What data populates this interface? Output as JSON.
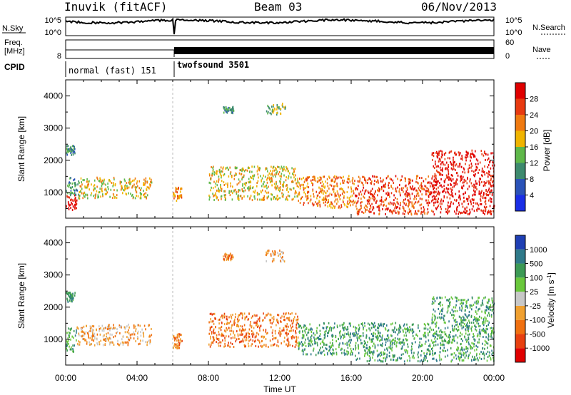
{
  "header": {
    "station": "Inuvik (fitACF)",
    "beam": "Beam 03",
    "date": "06/Nov/2013"
  },
  "top_panels": {
    "nsky_label": "N.Sky",
    "nsky_ticks": [
      "10^5",
      "10^0"
    ],
    "nsearch_label": "N.Search",
    "nsearch_ticks": [
      "10^5",
      "10^0"
    ],
    "freq_label": "Freq.",
    "freq_unit": "[MHz]",
    "freq_tick": "8",
    "nave_label": "Nave",
    "nave_ticks": [
      "60",
      "0"
    ],
    "cpid_label": "CPID",
    "cpid_modes": [
      {
        "name": "normal (fast) 151",
        "start_hour": 0,
        "end_hour": 6.0
      },
      {
        "name": "twofsound 3501",
        "start_hour": 6.0,
        "end_hour": 24.0
      }
    ]
  },
  "chart_data": [
    {
      "type": "heatmap",
      "name": "Power",
      "xlabel": "",
      "ylabel": "Slant Range [km]",
      "xlim": [
        0,
        24
      ],
      "ylim": [
        200,
        4500
      ],
      "y_ticks": [
        1000,
        2000,
        3000,
        4000
      ],
      "colorbar_label": "Power [dB]",
      "colorbar_ticks": [
        "4",
        "8",
        "12",
        "16",
        "20",
        "24",
        "28"
      ],
      "colorbar_colors": [
        "#1a2ee6",
        "#2a52b8",
        "#3d8a6e",
        "#5fb84a",
        "#f0b400",
        "#f07a10",
        "#e83a10",
        "#e00000"
      ],
      "scatter_regions": [
        {
          "t": [
            0.0,
            0.6
          ],
          "r": [
            400,
            900
          ],
          "level": 7
        },
        {
          "t": [
            0.0,
            0.7
          ],
          "r": [
            900,
            1450
          ],
          "level": 2
        },
        {
          "t": [
            0.7,
            4.8
          ],
          "r": [
            800,
            1450
          ],
          "level": 4
        },
        {
          "t": [
            0.0,
            0.5
          ],
          "r": [
            2150,
            2450
          ],
          "level": 2
        },
        {
          "t": [
            6.0,
            6.5
          ],
          "r": [
            700,
            1150
          ],
          "level": 5
        },
        {
          "t": [
            8.0,
            13.0
          ],
          "r": [
            750,
            1800
          ],
          "level": 4
        },
        {
          "t": [
            13.0,
            16.2
          ],
          "r": [
            500,
            1500
          ],
          "level": 5
        },
        {
          "t": [
            16.2,
            20.5
          ],
          "r": [
            300,
            1500
          ],
          "level": 6
        },
        {
          "t": [
            20.5,
            24.0
          ],
          "r": [
            300,
            2300
          ],
          "level": 7
        },
        {
          "t": [
            8.8,
            9.4
          ],
          "r": [
            3450,
            3650
          ],
          "level": 2
        },
        {
          "t": [
            11.2,
            12.3
          ],
          "r": [
            3400,
            3750
          ],
          "level": 3
        }
      ]
    },
    {
      "type": "heatmap",
      "name": "Velocity",
      "xlabel": "Time UT",
      "ylabel": "Slant Range [km]",
      "xlim": [
        0,
        24
      ],
      "ylim": [
        200,
        4500
      ],
      "x_ticks": [
        "00:00",
        "04:00",
        "08:00",
        "12:00",
        "16:00",
        "20:00",
        "00:00"
      ],
      "y_ticks": [
        1000,
        2000,
        3000,
        4000
      ],
      "colorbar_label": "Velocity [m s^-1]",
      "colorbar_ticks": [
        "1000",
        "500",
        "100",
        "25",
        "-25",
        "-100",
        "-500",
        "-1000"
      ],
      "colorbar_colors": [
        "#1f3fb4",
        "#2f7a8a",
        "#3c9a55",
        "#6ac83c",
        "#c8c8c8",
        "#f0a030",
        "#f07010",
        "#e84010",
        "#e00000"
      ],
      "scatter_regions": [
        {
          "t": [
            0.0,
            0.6
          ],
          "r": [
            600,
            1400
          ],
          "level": 6
        },
        {
          "t": [
            0.6,
            4.8
          ],
          "r": [
            800,
            1450
          ],
          "level": 3
        },
        {
          "t": [
            0.0,
            0.5
          ],
          "r": [
            2150,
            2450
          ],
          "level": 6
        },
        {
          "t": [
            6.0,
            6.5
          ],
          "r": [
            700,
            1150
          ],
          "level": 2
        },
        {
          "t": [
            8.0,
            13.0
          ],
          "r": [
            750,
            1800
          ],
          "level": 2
        },
        {
          "t": [
            13.0,
            16.2
          ],
          "r": [
            500,
            1500
          ],
          "level": 6
        },
        {
          "t": [
            16.2,
            20.5
          ],
          "r": [
            300,
            1500
          ],
          "level": 6
        },
        {
          "t": [
            20.5,
            24.0
          ],
          "r": [
            300,
            2300
          ],
          "level": 6
        },
        {
          "t": [
            8.8,
            9.4
          ],
          "r": [
            3450,
            3650
          ],
          "level": 2
        },
        {
          "t": [
            11.2,
            12.3
          ],
          "r": [
            3400,
            3750
          ],
          "level": 3
        }
      ]
    }
  ]
}
